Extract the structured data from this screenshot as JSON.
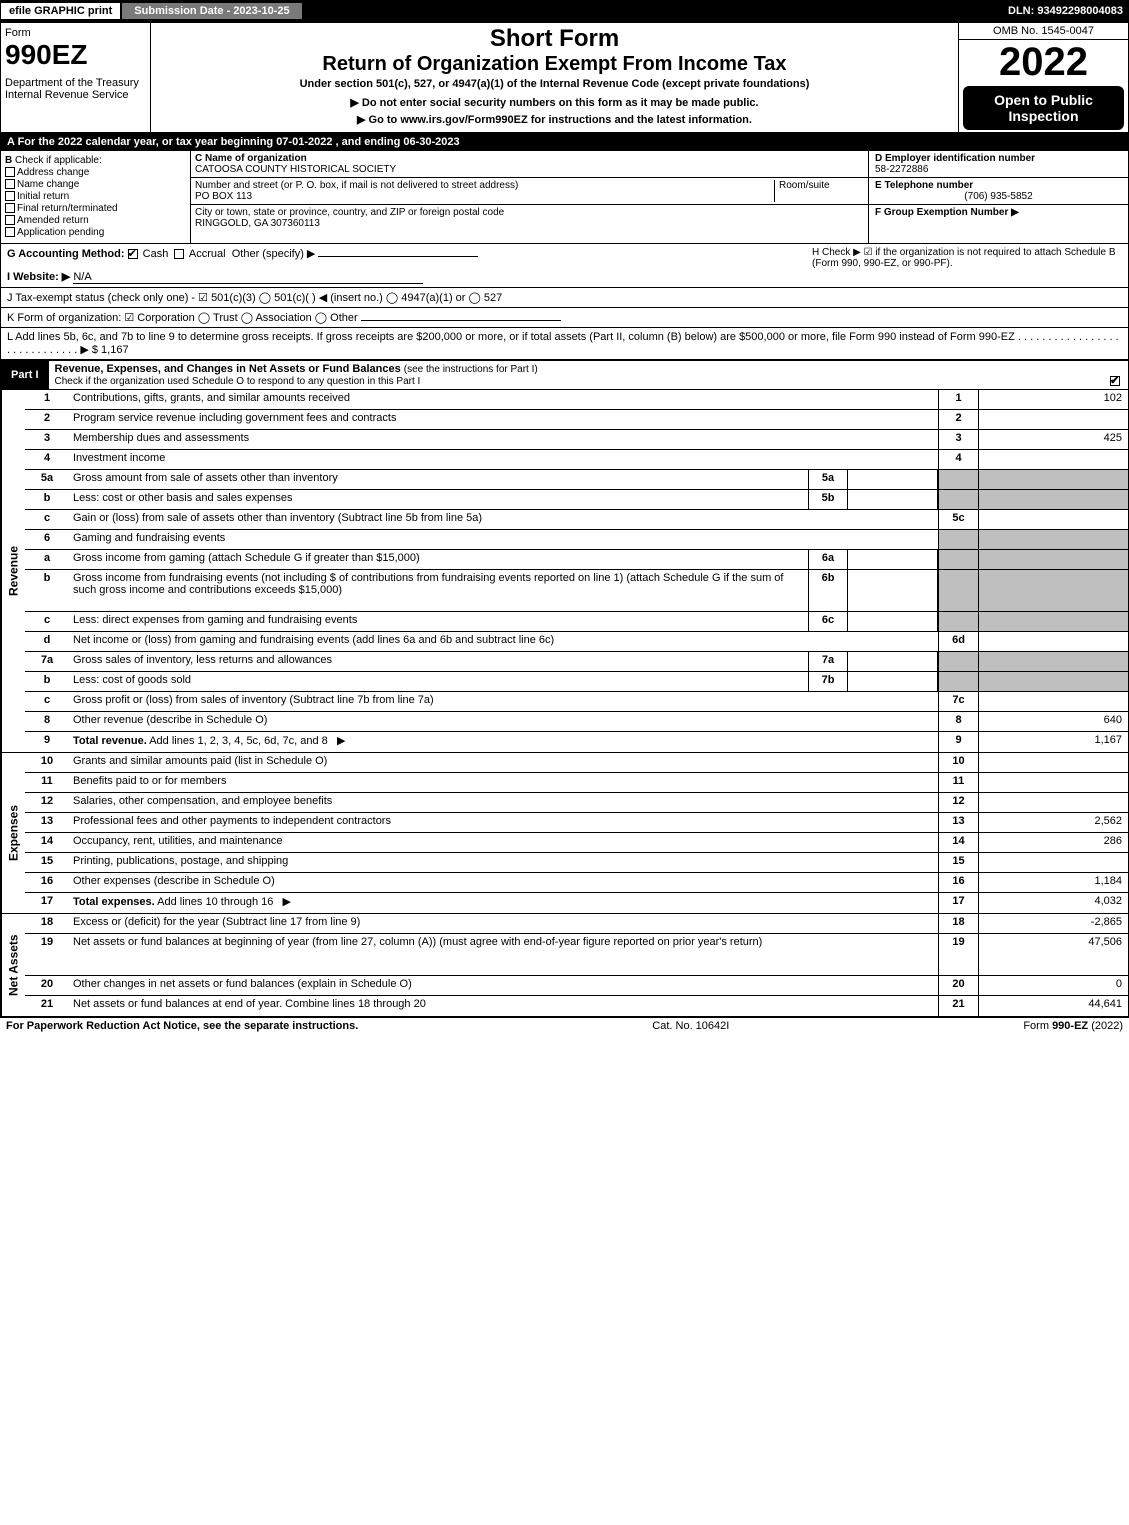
{
  "topbar": {
    "efile": "efile GRAPHIC print",
    "submission": "Submission Date - 2023-10-25",
    "dln": "DLN: 93492298004083"
  },
  "header": {
    "form_label": "Form",
    "form_no": "990EZ",
    "dept": "Department of the Treasury\nInternal Revenue Service",
    "short": "Short Form",
    "return": "Return of Organization Exempt From Income Tax",
    "under": "Under section 501(c), 527, or 4947(a)(1) of the Internal Revenue Code (except private foundations)",
    "note": "▶ Do not enter social security numbers on this form as it may be made public.",
    "goto": "▶ Go to www.irs.gov/Form990EZ for instructions and the latest information.",
    "omb": "OMB No. 1545-0047",
    "year": "2022",
    "open": "Open to Public Inspection"
  },
  "line_a": "A  For the 2022 calendar year, or tax year beginning 07-01-2022  , and ending 06-30-2023",
  "col_b": {
    "hdr": "B",
    "label": "Check if applicable:",
    "opts": [
      "Address change",
      "Name change",
      "Initial return",
      "Final return/terminated",
      "Amended return",
      "Application pending"
    ]
  },
  "col_c": {
    "name_lbl": "C Name of organization",
    "name": "CATOOSA COUNTY HISTORICAL SOCIETY",
    "street_lbl": "Number and street (or P. O. box, if mail is not delivered to street address)",
    "room_lbl": "Room/suite",
    "street": "PO BOX 113",
    "city_lbl": "City or town, state or province, country, and ZIP or foreign postal code",
    "city": "RINGGOLD, GA  307360113"
  },
  "col_d": {
    "ein_lbl": "D Employer identification number",
    "ein": "58-2272886",
    "tel_lbl": "E Telephone number",
    "tel": "(706) 935-5852",
    "grp_lbl": "F Group Exemption Number   ▶"
  },
  "g": {
    "label": "G Accounting Method:",
    "cash": "Cash",
    "accrual": "Accrual",
    "other": "Other (specify) ▶",
    "h": "H   Check ▶ ☑ if the organization is not required to attach Schedule B (Form 990, 990-EZ, or 990-PF)."
  },
  "i": {
    "label": "I Website: ▶",
    "val": "N/A"
  },
  "j": "J Tax-exempt status (check only one) - ☑ 501(c)(3)  ◯ 501(c)(   ) ◀ (insert no.)  ◯ 4947(a)(1) or  ◯ 527",
  "k": "K Form of organization:   ☑ Corporation   ◯ Trust   ◯ Association   ◯ Other",
  "l": "L Add lines 5b, 6c, and 7b to line 9 to determine gross receipts. If gross receipts are $200,000 or more, or if total assets (Part II, column (B) below) are $500,000 or more, file Form 990 instead of Form 990-EZ  .  .  .  .  .  .  .  .  .  .  .  .  .  .  .  .  .  .  .  .  .  .  .  .  .  .  .  .  . ▶ $ 1,167",
  "part1": {
    "tab": "Part I",
    "title": "Revenue, Expenses, and Changes in Net Assets or Fund Balances",
    "sub": "(see the instructions for Part I)",
    "check": "Check if the organization used Schedule O to respond to any question in this Part I"
  },
  "side_labels": {
    "rev": "Revenue",
    "exp": "Expenses",
    "na": "Net Assets"
  },
  "rows": [
    {
      "n": "1",
      "d": "Contributions, gifts, grants, and similar amounts received",
      "rn": "1",
      "rv": "102"
    },
    {
      "n": "2",
      "d": "Program service revenue including government fees and contracts",
      "rn": "2",
      "rv": ""
    },
    {
      "n": "3",
      "d": "Membership dues and assessments",
      "rn": "3",
      "rv": "425"
    },
    {
      "n": "4",
      "d": "Investment income",
      "rn": "4",
      "rv": ""
    },
    {
      "n": "5a",
      "d": "Gross amount from sale of assets other than inventory",
      "mc": "5a",
      "mv": "",
      "shade": true
    },
    {
      "n": "b",
      "d": "Less: cost or other basis and sales expenses",
      "mc": "5b",
      "mv": "",
      "shade": true
    },
    {
      "n": "c",
      "d": "Gain or (loss) from sale of assets other than inventory (Subtract line 5b from line 5a)",
      "rn": "5c",
      "rv": ""
    },
    {
      "n": "6",
      "d": "Gaming and fundraising events",
      "shade": true,
      "noright": true
    },
    {
      "n": "a",
      "d": "Gross income from gaming (attach Schedule G if greater than $15,000)",
      "mc": "6a",
      "mv": "",
      "shade": true
    },
    {
      "n": "b",
      "d": "Gross income from fundraising events (not including $                    of contributions from fundraising events reported on line 1) (attach Schedule G if the sum of such gross income and contributions exceeds $15,000)",
      "mc": "6b",
      "mv": "",
      "shade": true,
      "tall": true
    },
    {
      "n": "c",
      "d": "Less: direct expenses from gaming and fundraising events",
      "mc": "6c",
      "mv": "",
      "shade": true
    },
    {
      "n": "d",
      "d": "Net income or (loss) from gaming and fundraising events (add lines 6a and 6b and subtract line 6c)",
      "rn": "6d",
      "rv": ""
    },
    {
      "n": "7a",
      "d": "Gross sales of inventory, less returns and allowances",
      "mc": "7a",
      "mv": "",
      "shade": true
    },
    {
      "n": "b",
      "d": "Less: cost of goods sold",
      "mc": "7b",
      "mv": "",
      "shade": true
    },
    {
      "n": "c",
      "d": "Gross profit or (loss) from sales of inventory (Subtract line 7b from line 7a)",
      "rn": "7c",
      "rv": ""
    },
    {
      "n": "8",
      "d": "Other revenue (describe in Schedule O)",
      "rn": "8",
      "rv": "640"
    },
    {
      "n": "9",
      "d": "Total revenue. Add lines 1, 2, 3, 4, 5c, 6d, 7c, and 8",
      "rn": "9",
      "rv": "1,167",
      "bold": true,
      "arrow": true
    }
  ],
  "exp_rows": [
    {
      "n": "10",
      "d": "Grants and similar amounts paid (list in Schedule O)",
      "rn": "10",
      "rv": ""
    },
    {
      "n": "11",
      "d": "Benefits paid to or for members",
      "rn": "11",
      "rv": ""
    },
    {
      "n": "12",
      "d": "Salaries, other compensation, and employee benefits",
      "rn": "12",
      "rv": ""
    },
    {
      "n": "13",
      "d": "Professional fees and other payments to independent contractors",
      "rn": "13",
      "rv": "2,562"
    },
    {
      "n": "14",
      "d": "Occupancy, rent, utilities, and maintenance",
      "rn": "14",
      "rv": "286"
    },
    {
      "n": "15",
      "d": "Printing, publications, postage, and shipping",
      "rn": "15",
      "rv": ""
    },
    {
      "n": "16",
      "d": "Other expenses (describe in Schedule O)",
      "rn": "16",
      "rv": "1,184"
    },
    {
      "n": "17",
      "d": "Total expenses. Add lines 10 through 16",
      "rn": "17",
      "rv": "4,032",
      "bold": true,
      "arrow": true
    }
  ],
  "na_rows": [
    {
      "n": "18",
      "d": "Excess or (deficit) for the year (Subtract line 17 from line 9)",
      "rn": "18",
      "rv": "-2,865"
    },
    {
      "n": "19",
      "d": "Net assets or fund balances at beginning of year (from line 27, column (A)) (must agree with end-of-year figure reported on prior year's return)",
      "rn": "19",
      "rv": "47,506",
      "tall": true
    },
    {
      "n": "20",
      "d": "Other changes in net assets or fund balances (explain in Schedule O)",
      "rn": "20",
      "rv": "0"
    },
    {
      "n": "21",
      "d": "Net assets or fund balances at end of year. Combine lines 18 through 20",
      "rn": "21",
      "rv": "44,641"
    }
  ],
  "footer": {
    "l": "For Paperwork Reduction Act Notice, see the separate instructions.",
    "c": "Cat. No. 10642I",
    "r": "Form 990-EZ (2022)"
  }
}
